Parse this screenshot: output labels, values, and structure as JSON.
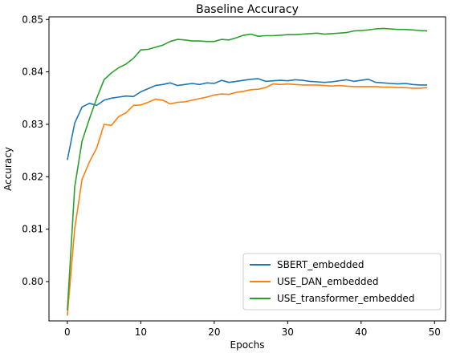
{
  "chart_data": {
    "type": "line",
    "title": "Baseline Accuracy",
    "xlabel": "Epochs",
    "ylabel": "Accuracy",
    "xlim": [
      -2.5,
      51.5
    ],
    "ylim": [
      0.7925,
      0.8505
    ],
    "xticks": [
      0,
      10,
      20,
      30,
      40,
      50
    ],
    "yticks": [
      0.8,
      0.81,
      0.82,
      0.83,
      0.84,
      0.85
    ],
    "ytick_labels": [
      "0.80",
      "0.81",
      "0.82",
      "0.83",
      "0.84",
      "0.85"
    ],
    "grid": false,
    "legend_position": "lower-right",
    "x": [
      0,
      1,
      2,
      3,
      4,
      5,
      6,
      7,
      8,
      9,
      10,
      11,
      12,
      13,
      14,
      15,
      16,
      17,
      18,
      19,
      20,
      21,
      22,
      23,
      24,
      25,
      26,
      27,
      28,
      29,
      30,
      31,
      32,
      33,
      34,
      35,
      36,
      37,
      38,
      39,
      40,
      41,
      42,
      43,
      44,
      45,
      46,
      47,
      48,
      49
    ],
    "series": [
      {
        "name": "SBERT_embedded",
        "color": "#1f77b4",
        "values": [
          0.8232,
          0.8302,
          0.8333,
          0.834,
          0.8336,
          0.8346,
          0.835,
          0.8352,
          0.8354,
          0.8353,
          0.8362,
          0.8368,
          0.8374,
          0.8376,
          0.8379,
          0.8374,
          0.8376,
          0.8378,
          0.8376,
          0.8379,
          0.8378,
          0.8384,
          0.838,
          0.8382,
          0.8384,
          0.8386,
          0.8387,
          0.8382,
          0.8383,
          0.8384,
          0.8383,
          0.8385,
          0.8384,
          0.8382,
          0.8381,
          0.838,
          0.8381,
          0.8383,
          0.8385,
          0.8382,
          0.8384,
          0.8386,
          0.838,
          0.8379,
          0.8378,
          0.8377,
          0.8378,
          0.8376,
          0.8375,
          0.8375
        ]
      },
      {
        "name": "USE_DAN_embedded",
        "color": "#ff7f0e",
        "values": [
          0.7935,
          0.81,
          0.8195,
          0.8228,
          0.8255,
          0.83,
          0.8298,
          0.8315,
          0.8322,
          0.8336,
          0.8337,
          0.8342,
          0.8348,
          0.8346,
          0.8339,
          0.8342,
          0.8343,
          0.8346,
          0.8349,
          0.8352,
          0.8356,
          0.8358,
          0.8357,
          0.8361,
          0.8363,
          0.8366,
          0.8367,
          0.837,
          0.8377,
          0.8376,
          0.8377,
          0.8376,
          0.8375,
          0.8375,
          0.8375,
          0.8374,
          0.8373,
          0.8374,
          0.8373,
          0.8372,
          0.8372,
          0.8372,
          0.8372,
          0.8371,
          0.8371,
          0.837,
          0.837,
          0.8369,
          0.8369,
          0.837
        ]
      },
      {
        "name": "USE_transformer_embedded",
        "color": "#2ca02c",
        "values": [
          0.7945,
          0.818,
          0.8268,
          0.831,
          0.835,
          0.8385,
          0.8398,
          0.8408,
          0.8415,
          0.8426,
          0.8442,
          0.8443,
          0.8447,
          0.8451,
          0.8458,
          0.8462,
          0.8461,
          0.8459,
          0.8459,
          0.8458,
          0.8458,
          0.8462,
          0.8461,
          0.8465,
          0.847,
          0.8472,
          0.8468,
          0.8469,
          0.8469,
          0.847,
          0.8471,
          0.8471,
          0.8472,
          0.8473,
          0.8474,
          0.8472,
          0.8473,
          0.8474,
          0.8475,
          0.8478,
          0.8479,
          0.848,
          0.8482,
          0.8483,
          0.8482,
          0.8481,
          0.8481,
          0.848,
          0.8479,
          0.8478
        ]
      }
    ]
  }
}
